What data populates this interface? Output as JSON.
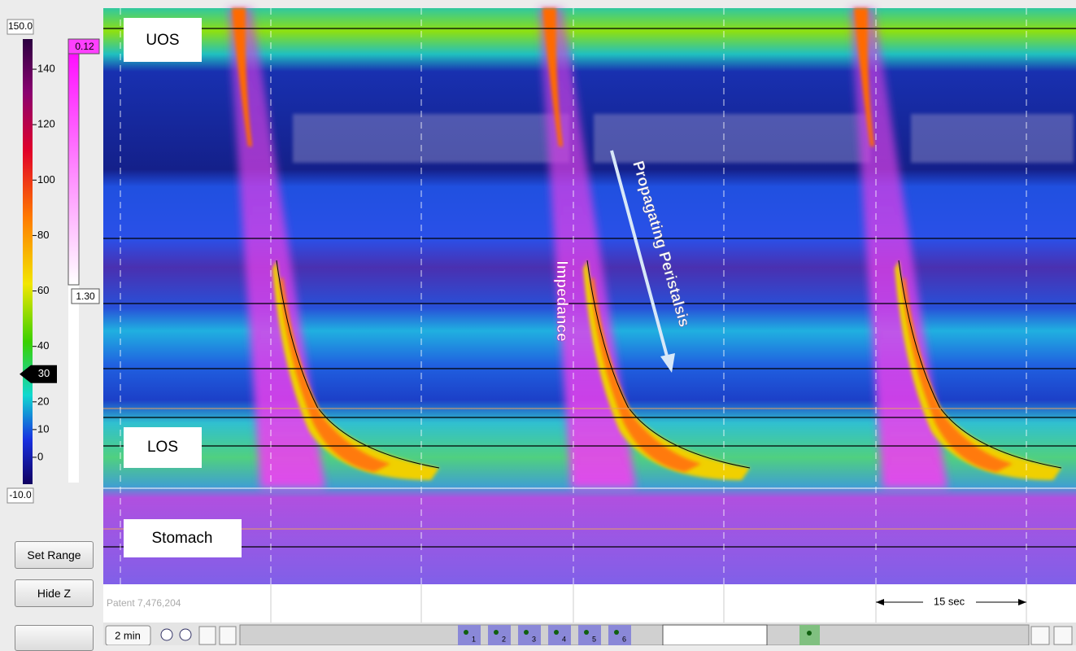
{
  "pressure_scale": {
    "max": {
      "value": 150,
      "label": "150.0"
    },
    "min": {
      "value": -10,
      "label": "-10.0"
    },
    "ticks": [
      140,
      120,
      100,
      80,
      60,
      40,
      20,
      10,
      0
    ],
    "marker": 30
  },
  "impedance_scale": {
    "top": "0.12",
    "bottom": "1.30"
  },
  "regions": {
    "uos": "UOS",
    "los": "LOS",
    "stomach": "Stomach"
  },
  "annotations": {
    "impedance": "Impedance",
    "peristalsis": "Propagating Peristalsis"
  },
  "buttons": {
    "set_range": "Set Range",
    "hide_z": "Hide Z",
    "zoom": "2 min"
  },
  "footer": {
    "patent": "Patent 7,476,204",
    "scale": "15 sec"
  },
  "markers": [
    "1",
    "2",
    "3",
    "4",
    "5",
    "6"
  ]
}
